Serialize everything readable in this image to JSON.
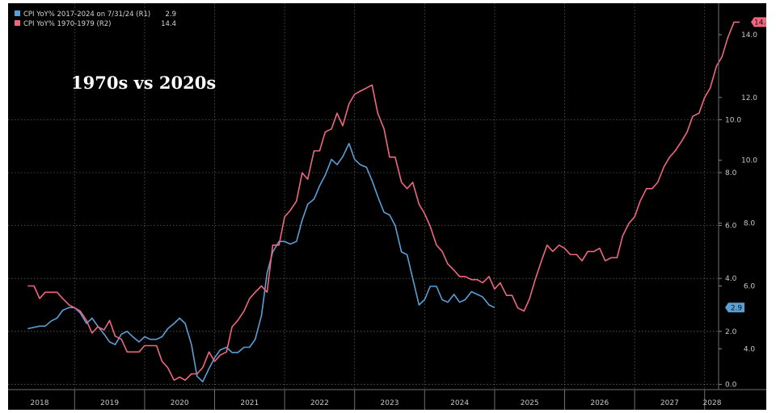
{
  "chart_data": {
    "type": "line",
    "title": "1970s vs 2020s",
    "x_ticks": [
      "2018",
      "2019",
      "2020",
      "2021",
      "2022",
      "2023",
      "2024",
      "2025",
      "2026",
      "2027",
      "2028"
    ],
    "axes": {
      "r1": {
        "ylim": [
          -0.2,
          14.4
        ],
        "ticks": [
          0.0,
          2.0,
          4.0,
          6.0,
          8.0,
          10.0
        ],
        "labels": [
          "0.0",
          "2.0",
          "4.0",
          "6.0",
          "8.0",
          "10.0"
        ]
      },
      "r2": {
        "ylim": [
          2.7,
          15.0
        ],
        "ticks": [
          4.0,
          6.0,
          8.0,
          10.0,
          12.0,
          14.0
        ],
        "labels": [
          "4.0",
          "6.0",
          "8.0",
          "10.0",
          "12.0",
          "14.0"
        ]
      }
    },
    "grid": true,
    "legend_placement": "top-left",
    "series": [
      {
        "name": "CPI YoY% 2017-2024 on 7/31/24 (R1)",
        "axis": "r1",
        "color": "#5aa0d6",
        "last_label": "2.9",
        "x": [
          2017.83,
          2018.0,
          2018.08,
          2018.17,
          2018.25,
          2018.33,
          2018.42,
          2018.5,
          2018.58,
          2018.67,
          2018.75,
          2018.83,
          2018.92,
          2019.0,
          2019.08,
          2019.17,
          2019.25,
          2019.33,
          2019.42,
          2019.5,
          2019.58,
          2019.67,
          2019.75,
          2019.83,
          2019.92,
          2020.0,
          2020.08,
          2020.17,
          2020.25,
          2020.33,
          2020.42,
          2020.5,
          2020.58,
          2020.67,
          2020.75,
          2020.83,
          2020.92,
          2021.0,
          2021.08,
          2021.17,
          2021.25,
          2021.33,
          2021.42,
          2021.5,
          2021.58,
          2021.67,
          2021.75,
          2021.83,
          2021.92,
          2022.0,
          2022.08,
          2022.17,
          2022.25,
          2022.33,
          2022.42,
          2022.5,
          2022.58,
          2022.67,
          2022.75,
          2022.83,
          2022.92,
          2023.0,
          2023.08,
          2023.17,
          2023.25,
          2023.33,
          2023.42,
          2023.5,
          2023.58,
          2023.67,
          2023.75,
          2023.83,
          2023.92,
          2024.0,
          2024.08,
          2024.17,
          2024.25,
          2024.33,
          2024.42,
          2024.5
        ],
        "values": [
          2.1,
          2.2,
          2.2,
          2.4,
          2.5,
          2.8,
          2.9,
          2.9,
          2.7,
          2.3,
          2.5,
          2.2,
          1.9,
          1.6,
          1.5,
          1.9,
          2.0,
          1.8,
          1.6,
          1.8,
          1.7,
          1.7,
          1.8,
          2.1,
          2.3,
          2.5,
          2.3,
          1.5,
          0.3,
          0.1,
          0.6,
          1.0,
          1.3,
          1.4,
          1.2,
          1.2,
          1.4,
          1.4,
          1.7,
          2.6,
          4.2,
          5.0,
          5.4,
          5.4,
          5.3,
          5.4,
          6.2,
          6.8,
          7.0,
          7.5,
          7.9,
          8.5,
          8.3,
          8.6,
          9.1,
          8.5,
          8.3,
          8.2,
          7.7,
          7.1,
          6.5,
          6.4,
          6.0,
          5.0,
          4.9,
          4.0,
          3.0,
          3.2,
          3.7,
          3.7,
          3.2,
          3.1,
          3.4,
          3.1,
          3.2,
          3.5,
          3.4,
          3.3,
          3.0,
          2.9
        ]
      },
      {
        "name": "CPI YoY% 1970-1979 (R2)",
        "axis": "r2",
        "color": "#f0677c",
        "last_label": "14.4",
        "x": [
          2017.83,
          2017.92,
          2018.0,
          2018.08,
          2018.17,
          2018.25,
          2018.33,
          2018.42,
          2018.5,
          2018.58,
          2018.67,
          2018.75,
          2018.83,
          2018.92,
          2019.0,
          2019.08,
          2019.17,
          2019.25,
          2019.33,
          2019.42,
          2019.5,
          2019.58,
          2019.67,
          2019.75,
          2019.83,
          2019.92,
          2020.0,
          2020.08,
          2020.17,
          2020.25,
          2020.33,
          2020.42,
          2020.5,
          2020.58,
          2020.67,
          2020.75,
          2020.83,
          2020.92,
          2021.0,
          2021.08,
          2021.17,
          2021.25,
          2021.33,
          2021.42,
          2021.5,
          2021.58,
          2021.67,
          2021.75,
          2021.83,
          2021.92,
          2022.0,
          2022.08,
          2022.17,
          2022.25,
          2022.33,
          2022.42,
          2022.5,
          2022.58,
          2022.67,
          2022.75,
          2022.83,
          2022.92,
          2023.0,
          2023.08,
          2023.17,
          2023.25,
          2023.33,
          2023.42,
          2023.5,
          2023.58,
          2023.67,
          2023.75,
          2023.83,
          2023.92,
          2024.0,
          2024.08,
          2024.17,
          2024.25,
          2024.33,
          2024.42,
          2024.5,
          2024.58,
          2024.67,
          2024.75,
          2024.83,
          2024.92,
          2025.0,
          2025.08,
          2025.17,
          2025.25,
          2025.33,
          2025.42,
          2025.5,
          2025.58,
          2025.67,
          2025.75,
          2025.83,
          2025.92,
          2026.0,
          2026.08,
          2026.17,
          2026.25,
          2026.33,
          2026.42,
          2026.5,
          2026.58,
          2026.67,
          2026.75,
          2026.83,
          2026.92,
          2027.0,
          2027.08,
          2027.17,
          2027.25,
          2027.33,
          2027.42,
          2027.5,
          2027.58,
          2027.67,
          2027.75,
          2027.83,
          2027.92,
          2028.0
        ],
        "values": [
          6.0,
          6.0,
          5.6,
          5.8,
          5.8,
          5.8,
          5.6,
          5.4,
          5.3,
          5.2,
          4.9,
          4.5,
          4.7,
          4.6,
          4.9,
          4.4,
          4.3,
          3.9,
          3.9,
          3.9,
          4.1,
          4.1,
          4.1,
          3.6,
          3.4,
          3.0,
          3.1,
          3.0,
          3.2,
          3.2,
          3.4,
          3.9,
          3.6,
          3.8,
          3.9,
          4.7,
          4.9,
          5.2,
          5.6,
          5.8,
          6.0,
          5.8,
          7.3,
          7.3,
          8.2,
          8.4,
          8.7,
          9.6,
          9.4,
          10.3,
          10.3,
          10.9,
          11.0,
          11.5,
          11.1,
          11.8,
          12.1,
          12.2,
          12.3,
          12.4,
          11.5,
          11.0,
          10.1,
          10.1,
          9.3,
          9.1,
          9.3,
          8.6,
          8.3,
          7.9,
          7.3,
          7.1,
          6.7,
          6.5,
          6.3,
          6.3,
          6.2,
          6.2,
          6.1,
          6.3,
          5.9,
          6.1,
          5.7,
          5.7,
          5.3,
          5.2,
          5.6,
          6.2,
          6.8,
          7.3,
          7.1,
          7.3,
          7.2,
          7.0,
          7.0,
          6.8,
          7.1,
          7.1,
          7.2,
          6.8,
          6.9,
          6.9,
          7.6,
          8.0,
          8.2,
          8.7,
          9.1,
          9.1,
          9.3,
          9.8,
          10.1,
          10.3,
          10.6,
          10.9,
          11.4,
          11.5,
          12.0,
          12.3,
          13.0,
          13.3,
          13.9,
          14.4,
          14.4
        ]
      }
    ]
  }
}
